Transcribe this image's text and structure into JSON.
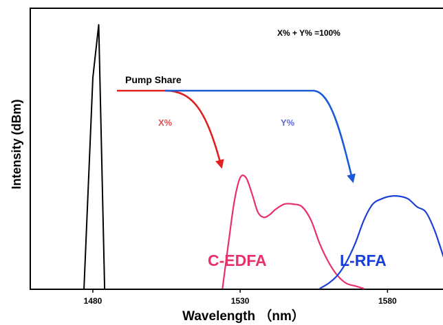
{
  "chart_data": {
    "type": "line",
    "xlabel": "Wavelength （nm）",
    "ylabel": "Intensity (dBm)",
    "x_ticks": [
      1480,
      1530,
      1580
    ],
    "x_tick_labels": [
      "1480",
      "1530",
      "1580"
    ],
    "xlim": [
      1459,
      1600
    ],
    "annotations": {
      "equation": "X% + Y% =100%",
      "pump_share": "Pump Share",
      "x_share": "X%",
      "y_share": "Y%",
      "c_band_label": "C-EDFA",
      "l_band_label": "L-RFA"
    },
    "series": [
      {
        "name": "",
        "color": "#000000",
        "x": [
          1477,
          1480,
          1482,
          1484
        ],
        "y": [
          0.0,
          0.8,
          1.0,
          0.0
        ]
      },
      {
        "name": "C-EDFA",
        "color": "#e8306a",
        "x": [
          1524,
          1526,
          1528,
          1530,
          1532,
          1534,
          1536,
          1538,
          1540,
          1542,
          1545,
          1548,
          1551,
          1554,
          1557,
          1560,
          1563,
          1566,
          1569,
          1572
        ],
        "y": [
          0.0,
          0.17,
          0.33,
          0.42,
          0.42,
          0.36,
          0.29,
          0.27,
          0.28,
          0.3,
          0.32,
          0.32,
          0.31,
          0.26,
          0.17,
          0.1,
          0.05,
          0.02,
          0.01,
          0.0
        ]
      },
      {
        "name": "L-RFA",
        "color": "#1a3fd6",
        "x": [
          1557,
          1560,
          1563,
          1566,
          1569,
          1572,
          1575,
          1578,
          1581,
          1584,
          1587,
          1590,
          1593,
          1596,
          1599
        ],
        "y": [
          0.0,
          0.02,
          0.05,
          0.1,
          0.17,
          0.26,
          0.32,
          0.34,
          0.35,
          0.35,
          0.34,
          0.31,
          0.29,
          0.22,
          0.12
        ]
      }
    ],
    "arrows": [
      {
        "label": "X%",
        "color": "#e02020"
      },
      {
        "label": "Y%",
        "color": "#1a5ad6"
      }
    ],
    "grid": false,
    "legend": "none"
  }
}
